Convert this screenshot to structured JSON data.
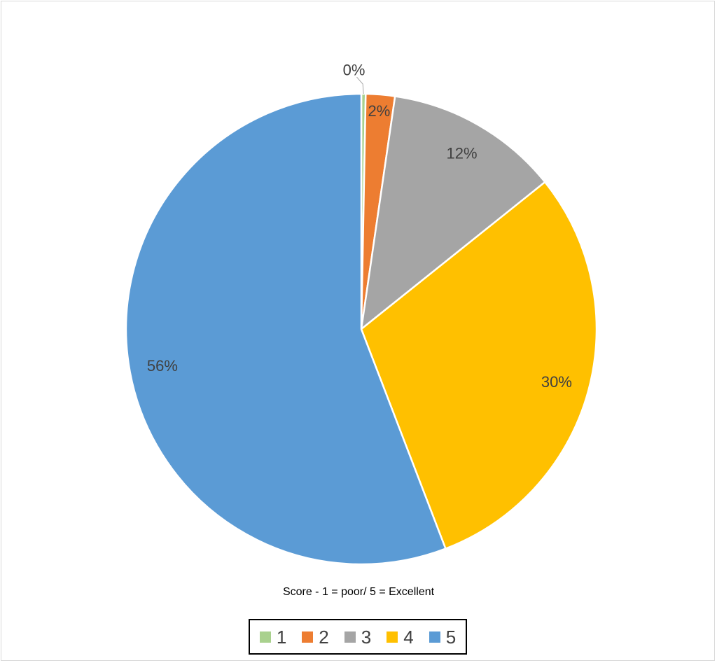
{
  "chart_data": {
    "type": "pie",
    "title": "",
    "xlabel": "Score - 1 = poor/ 5 = Excellent",
    "categories": [
      "1",
      "2",
      "3",
      "4",
      "5"
    ],
    "values": [
      0.3,
      2,
      12,
      30,
      56
    ],
    "data_labels": [
      "0%",
      "2%",
      "12%",
      "30%",
      "56%"
    ],
    "colors": [
      "#a9d18e",
      "#ed7d31",
      "#a5a5a5",
      "#ffc000",
      "#5b9bd5"
    ],
    "legend_position": "bottom",
    "start_angle_deg": 0,
    "direction": "clockwise"
  }
}
